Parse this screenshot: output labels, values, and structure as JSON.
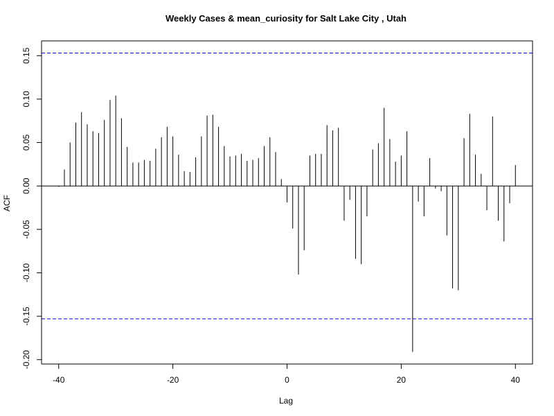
{
  "chart_data": {
    "type": "bar",
    "title": "Weekly Cases & mean_curiosity for Salt Lake City , Utah",
    "xlabel": "Lag",
    "ylabel": "ACF",
    "xlim": [
      -43,
      43
    ],
    "ylim": [
      -0.205,
      0.167
    ],
    "x_ticks": [
      -40,
      -20,
      0,
      20,
      40
    ],
    "x_tick_labels": [
      "-40",
      "-20",
      "0",
      "20",
      "40"
    ],
    "y_ticks": [
      -0.2,
      -0.15,
      -0.1,
      -0.05,
      0.0,
      0.05,
      0.1,
      0.15
    ],
    "y_tick_labels": [
      "-0.20",
      "-0.15",
      "-0.10",
      "-0.05",
      "0.00",
      "0.05",
      "0.10",
      "0.15"
    ],
    "confidence_band": 0.153,
    "confidence_color": "#0000cc",
    "bar_color": "#000000",
    "lags": [
      -40,
      -39,
      -38,
      -37,
      -36,
      -35,
      -34,
      -33,
      -32,
      -31,
      -30,
      -29,
      -28,
      -27,
      -26,
      -25,
      -24,
      -23,
      -22,
      -21,
      -20,
      -19,
      -18,
      -17,
      -16,
      -15,
      -14,
      -13,
      -12,
      -11,
      -10,
      -9,
      -8,
      -7,
      -6,
      -5,
      -4,
      -3,
      -2,
      -1,
      0,
      1,
      2,
      3,
      4,
      5,
      6,
      7,
      8,
      9,
      10,
      11,
      12,
      13,
      14,
      15,
      16,
      17,
      18,
      19,
      20,
      21,
      22,
      23,
      24,
      25,
      26,
      27,
      28,
      29,
      30,
      31,
      32,
      33,
      34,
      35,
      36,
      37,
      38,
      39,
      40
    ],
    "values": [
      -0.001,
      0.019,
      0.05,
      0.073,
      0.085,
      0.071,
      0.063,
      0.061,
      0.076,
      0.099,
      0.104,
      0.078,
      0.045,
      0.027,
      0.027,
      0.03,
      0.029,
      0.043,
      0.056,
      0.068,
      0.057,
      0.036,
      0.017,
      0.016,
      0.033,
      0.057,
      0.081,
      0.082,
      0.068,
      0.046,
      0.034,
      0.035,
      0.037,
      0.029,
      0.03,
      0.032,
      0.046,
      0.056,
      0.039,
      0.008,
      -0.019,
      -0.049,
      -0.102,
      -0.074,
      0.035,
      0.037,
      0.037,
      0.07,
      0.064,
      0.067,
      -0.04,
      -0.016,
      -0.084,
      -0.09,
      -0.035,
      0.042,
      0.049,
      0.09,
      0.054,
      0.028,
      0.035,
      0.063,
      -0.191,
      -0.018,
      -0.035,
      0.032,
      -0.003,
      -0.006,
      -0.057,
      -0.118,
      -0.12,
      0.055,
      0.083,
      0.036,
      0.014,
      -0.028,
      0.08,
      -0.04,
      -0.064,
      -0.02,
      0.024
    ]
  }
}
